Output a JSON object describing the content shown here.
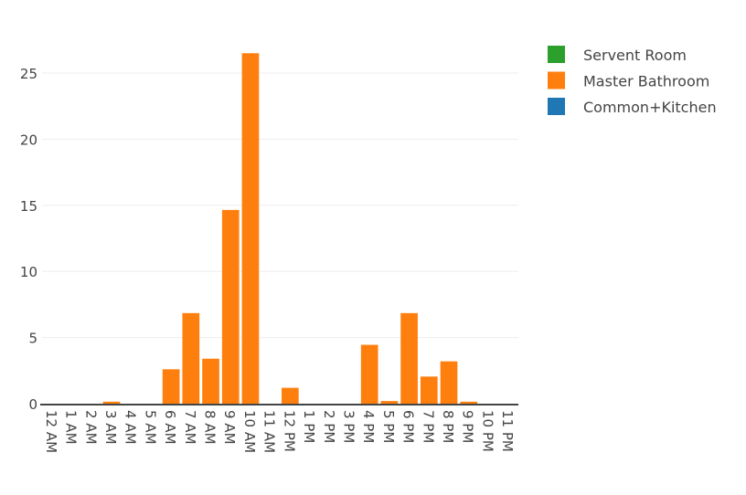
{
  "chart_data": {
    "type": "bar",
    "barmode": "stack",
    "categories": [
      "12 AM",
      "1 AM",
      "2 AM",
      "3 AM",
      "4 AM",
      "5 AM",
      "6 AM",
      "7 AM",
      "8 AM",
      "9 AM",
      "10 AM",
      "11 AM",
      "12 PM",
      "1 PM",
      "2 PM",
      "3 PM",
      "4 PM",
      "5 PM",
      "6 PM",
      "7 PM",
      "8 PM",
      "9 PM",
      "10 PM",
      "11 PM"
    ],
    "series": [
      {
        "name": "Servent Room",
        "color": "#2ca02c",
        "values": [
          0,
          0,
          0,
          0,
          0,
          0,
          0,
          0,
          0,
          0,
          0,
          0,
          0,
          0,
          0,
          0,
          0,
          0,
          0,
          0,
          0,
          0,
          0,
          0
        ]
      },
      {
        "name": "Master Bathroom",
        "color": "#ff7f0e",
        "values": [
          0,
          0,
          0,
          0.15,
          0,
          0,
          2.6,
          6.85,
          3.4,
          14.65,
          26.5,
          0,
          1.2,
          0,
          0,
          0,
          4.45,
          0.2,
          6.85,
          2.05,
          3.2,
          0.15,
          0,
          0
        ]
      },
      {
        "name": "Common+Kitchen",
        "color": "#1f77b4",
        "values": [
          0,
          0,
          0,
          0,
          0,
          0,
          0,
          0,
          0,
          0,
          0,
          0,
          0,
          0,
          0,
          0,
          0,
          0,
          0,
          0,
          0,
          0,
          0,
          0
        ]
      }
    ],
    "yticks": [
      0,
      5,
      10,
      15,
      20,
      25
    ],
    "ylim": [
      0,
      27.9
    ],
    "grid": true,
    "legend": "top-right",
    "title": "",
    "xlabel": "",
    "ylabel": ""
  }
}
